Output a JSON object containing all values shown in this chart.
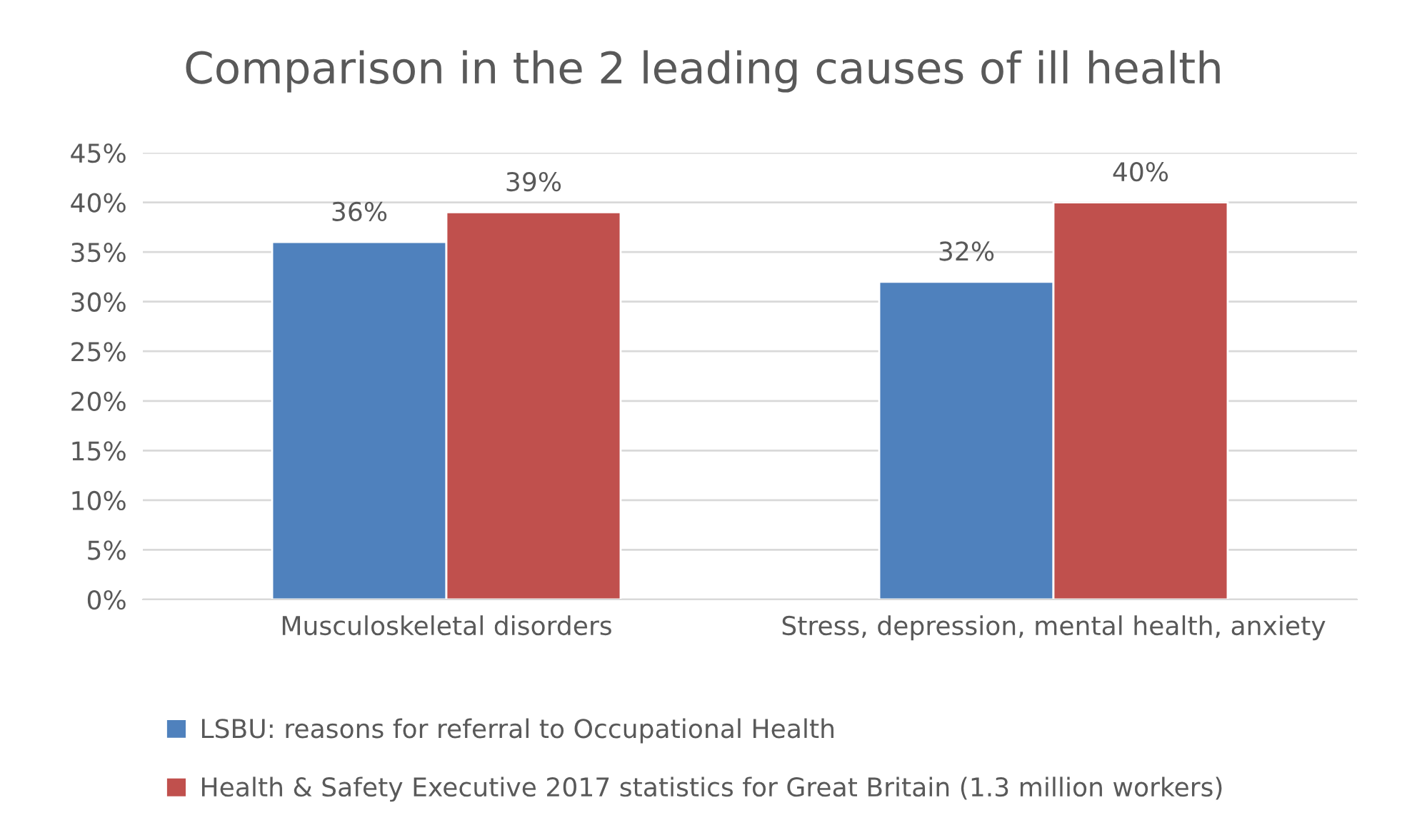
{
  "chart_data": {
    "type": "bar",
    "title": "Comparison in the 2 leading causes of ill health",
    "categories": [
      "Musculoskeletal disorders",
      "Stress, depression, mental health, anxiety"
    ],
    "series": [
      {
        "name": "LSBU: reasons for referral to Occupational Health",
        "color": "#4f81bd",
        "values": [
          36,
          32
        ],
        "value_labels": [
          "36%",
          "32%"
        ]
      },
      {
        "name": "Health & Safety Executive 2017 statistics for Great Britain (1.3 million workers)",
        "color": "#c0504d",
        "values": [
          39,
          40
        ],
        "value_labels": [
          "39%",
          "40%"
        ]
      }
    ],
    "ylim": [
      0,
      45
    ],
    "yticks": [
      {
        "value": 0,
        "label": "0%"
      },
      {
        "value": 5,
        "label": "5%"
      },
      {
        "value": 10,
        "label": "10%"
      },
      {
        "value": 15,
        "label": "15%"
      },
      {
        "value": 20,
        "label": "20%"
      },
      {
        "value": 25,
        "label": "25%"
      },
      {
        "value": 30,
        "label": "30%"
      },
      {
        "value": 35,
        "label": "35%"
      },
      {
        "value": 40,
        "label": "40%"
      },
      {
        "value": 45,
        "label": "45%"
      }
    ],
    "grid": "y",
    "legend": "bottom"
  }
}
